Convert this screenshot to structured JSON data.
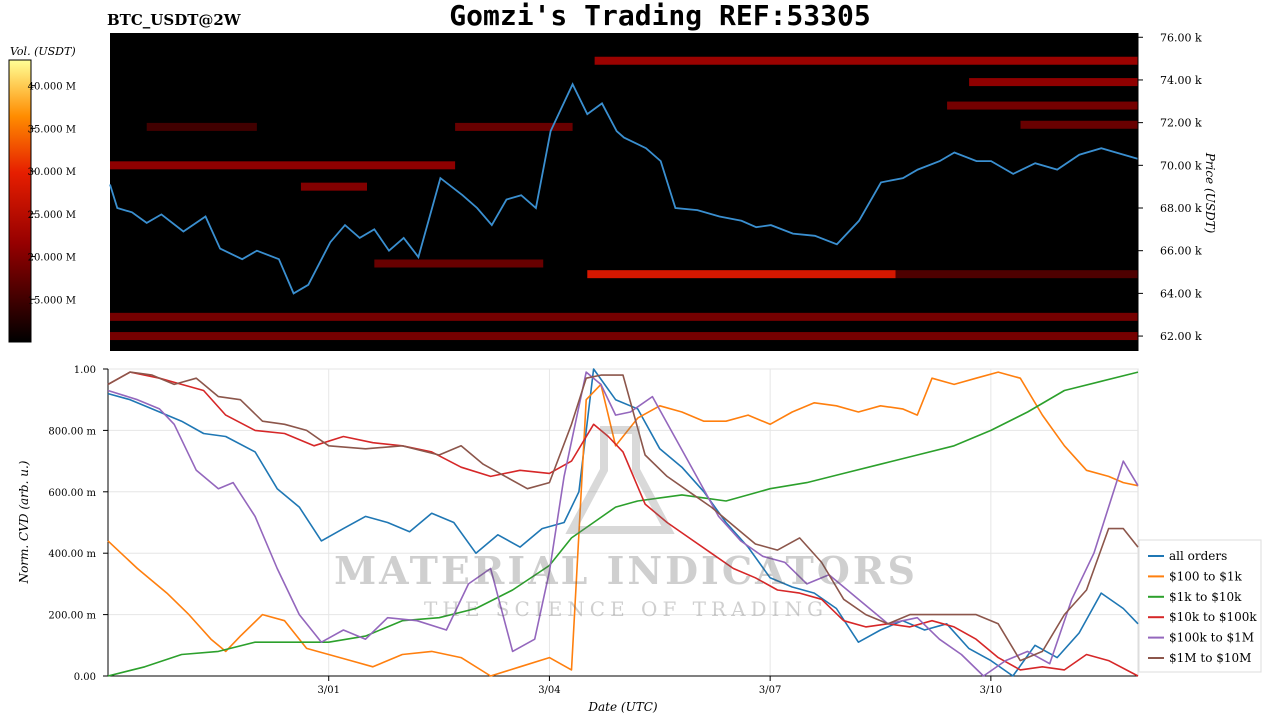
{
  "header": {
    "pair_label": "BTC_USDT@2W",
    "title": "Gomzi's Trading REF:53305"
  },
  "watermark": {
    "line1": "MATERIAL INDICATORS",
    "line2": "THE SCIENCE OF TRADING"
  },
  "colors": {
    "heatmap_bg": "#000000",
    "price_line": "#3a8fd0",
    "all_orders": "#1f77b4",
    "usd100_1k": "#ff7f0e",
    "usd1k_10k": "#2ca02c",
    "usd10k_100k": "#d62728",
    "usd100k_1m": "#9467bd",
    "usd1m_10m": "#8c564b"
  },
  "chart_data": [
    {
      "type": "heatmap",
      "colorbar": {
        "label": "Vol. (USDT)",
        "ticks": [
          "40.000 M",
          "35.000 M",
          "30.000 M",
          "25.000 M",
          "20.000 M",
          "15.000 M"
        ],
        "range": [
          10,
          43
        ]
      },
      "ylabel": "Price (USDT)",
      "ylim": [
        61.3,
        76.2
      ],
      "y_ticks": [
        {
          "v": 76,
          "label": "76.00 k"
        },
        {
          "v": 74,
          "label": "74.00 k"
        },
        {
          "v": 72,
          "label": "72.00 k"
        },
        {
          "v": 70,
          "label": "70.00 k"
        },
        {
          "v": 68,
          "label": "68.00 k"
        },
        {
          "v": 66,
          "label": "66.00 k"
        },
        {
          "v": 64,
          "label": "64.00 k"
        },
        {
          "v": 62,
          "label": "62.00 k"
        }
      ],
      "xlim": [
        0,
        14
      ],
      "price_series": {
        "x": [
          0,
          0.1,
          0.3,
          0.5,
          0.7,
          1.0,
          1.3,
          1.5,
          1.8,
          2.0,
          2.3,
          2.5,
          2.7,
          3.0,
          3.2,
          3.4,
          3.6,
          3.8,
          4.0,
          4.2,
          4.5,
          4.8,
          5.0,
          5.2,
          5.4,
          5.6,
          5.8,
          6.0,
          6.3,
          6.5,
          6.7,
          6.9,
          7.0,
          7.3,
          7.5,
          7.7,
          8.0,
          8.3,
          8.6,
          8.8,
          9.0,
          9.3,
          9.6,
          9.9,
          10.2,
          10.5,
          10.8,
          11.0,
          11.3,
          11.5,
          11.8,
          12.0,
          12.3,
          12.6,
          12.9,
          13.2,
          13.5,
          13.7,
          14.0
        ],
        "y": [
          69.1,
          68.0,
          67.8,
          67.3,
          67.7,
          66.9,
          67.6,
          66.1,
          65.6,
          66.0,
          65.6,
          64.0,
          64.4,
          66.4,
          67.2,
          66.6,
          67.0,
          66.0,
          66.6,
          65.7,
          69.4,
          68.6,
          68.0,
          67.2,
          68.4,
          68.6,
          68.0,
          71.6,
          73.8,
          72.4,
          72.9,
          71.6,
          71.3,
          70.8,
          70.2,
          68.0,
          67.9,
          67.6,
          67.4,
          67.1,
          67.2,
          66.8,
          66.7,
          66.3,
          67.4,
          69.2,
          69.4,
          69.8,
          70.2,
          70.6,
          70.2,
          70.2,
          69.6,
          70.1,
          69.8,
          70.5,
          70.8,
          70.6,
          70.3
        ]
      },
      "liquidity_bands": [
        {
          "price": 74.9,
          "x": [
            6.6,
            14
          ],
          "vol": 22
        },
        {
          "price": 73.9,
          "x": [
            11.7,
            14
          ],
          "vol": 21
        },
        {
          "price": 72.8,
          "x": [
            11.4,
            14
          ],
          "vol": 19
        },
        {
          "price": 71.9,
          "x": [
            12.4,
            14
          ],
          "vol": 18
        },
        {
          "price": 71.8,
          "x": [
            0.5,
            2.0
          ],
          "vol": 15
        },
        {
          "price": 71.8,
          "x": [
            4.7,
            6.3
          ],
          "vol": 18
        },
        {
          "price": 70.0,
          "x": [
            0,
            4.7
          ],
          "vol": 21
        },
        {
          "price": 69.0,
          "x": [
            2.6,
            3.5
          ],
          "vol": 20
        },
        {
          "price": 65.4,
          "x": [
            3.6,
            5.9
          ],
          "vol": 18
        },
        {
          "price": 64.9,
          "x": [
            6.5,
            10.7
          ],
          "vol": 28
        },
        {
          "price": 64.9,
          "x": [
            10.7,
            14
          ],
          "vol": 16
        },
        {
          "price": 62.9,
          "x": [
            0,
            14
          ],
          "vol": 19
        },
        {
          "price": 62.0,
          "x": [
            0,
            14
          ],
          "vol": 19
        }
      ]
    },
    {
      "type": "line",
      "xlabel": "Date (UTC)",
      "ylabel": "Norm. CVD (arb. u.)",
      "ylim": [
        0,
        1
      ],
      "xlim": [
        0,
        14
      ],
      "x_ticks": [
        {
          "v": 3,
          "label": "3/01"
        },
        {
          "v": 6,
          "label": "3/04"
        },
        {
          "v": 9,
          "label": "3/07"
        },
        {
          "v": 12,
          "label": "3/10"
        }
      ],
      "y_ticks": [
        {
          "v": 0,
          "label": "0.00"
        },
        {
          "v": 0.2,
          "label": "200.00 m"
        },
        {
          "v": 0.4,
          "label": "400.00 m"
        },
        {
          "v": 0.6,
          "label": "600.00 m"
        },
        {
          "v": 0.8,
          "label": "800.00 m"
        },
        {
          "v": 1,
          "label": "1.00"
        }
      ],
      "legend_position": "right",
      "series": [
        {
          "name": "all orders",
          "color": "#1f77b4",
          "x": [
            0,
            0.3,
            0.6,
            1.0,
            1.3,
            1.6,
            2.0,
            2.3,
            2.6,
            2.9,
            3.2,
            3.5,
            3.8,
            4.1,
            4.4,
            4.7,
            5.0,
            5.3,
            5.6,
            5.9,
            6.2,
            6.4,
            6.6,
            6.9,
            7.2,
            7.5,
            7.8,
            8.1,
            8.4,
            8.7,
            9.0,
            9.3,
            9.6,
            9.9,
            10.2,
            10.5,
            10.8,
            11.1,
            11.4,
            11.7,
            12.0,
            12.3,
            12.6,
            12.9,
            13.2,
            13.5,
            13.8,
            14.0
          ],
          "y": [
            0.92,
            0.9,
            0.87,
            0.83,
            0.79,
            0.78,
            0.73,
            0.61,
            0.55,
            0.44,
            0.48,
            0.52,
            0.5,
            0.47,
            0.53,
            0.5,
            0.4,
            0.46,
            0.42,
            0.48,
            0.5,
            0.6,
            1.0,
            0.9,
            0.87,
            0.74,
            0.68,
            0.6,
            0.5,
            0.42,
            0.32,
            0.29,
            0.27,
            0.22,
            0.11,
            0.15,
            0.18,
            0.15,
            0.17,
            0.09,
            0.05,
            0.0,
            0.1,
            0.06,
            0.14,
            0.27,
            0.22,
            0.17
          ]
        },
        {
          "name": "$100 to $1k",
          "color": "#ff7f0e",
          "x": [
            0,
            0.4,
            0.8,
            1.1,
            1.4,
            1.6,
            1.8,
            2.1,
            2.4,
            2.7,
            3.0,
            3.3,
            3.6,
            4.0,
            4.4,
            4.8,
            5.2,
            5.6,
            6.0,
            6.3,
            6.5,
            6.7,
            6.9,
            7.2,
            7.5,
            7.8,
            8.1,
            8.4,
            8.7,
            9.0,
            9.3,
            9.6,
            9.9,
            10.2,
            10.5,
            10.8,
            11.0,
            11.2,
            11.5,
            11.8,
            12.1,
            12.4,
            12.7,
            13.0,
            13.3,
            13.6,
            13.8,
            14.0
          ],
          "y": [
            0.44,
            0.35,
            0.27,
            0.2,
            0.12,
            0.08,
            0.13,
            0.2,
            0.18,
            0.09,
            0.07,
            0.05,
            0.03,
            0.07,
            0.08,
            0.06,
            0.0,
            0.03,
            0.06,
            0.02,
            0.9,
            0.95,
            0.75,
            0.84,
            0.88,
            0.86,
            0.83,
            0.83,
            0.85,
            0.82,
            0.86,
            0.89,
            0.88,
            0.86,
            0.88,
            0.87,
            0.85,
            0.97,
            0.95,
            0.97,
            0.99,
            0.97,
            0.85,
            0.75,
            0.67,
            0.65,
            0.63,
            0.62
          ]
        },
        {
          "name": "$1k to $10k",
          "color": "#2ca02c",
          "x": [
            0,
            0.5,
            1.0,
            1.5,
            2.0,
            2.5,
            3.0,
            3.5,
            4.0,
            4.5,
            5.0,
            5.5,
            6.0,
            6.3,
            6.6,
            6.9,
            7.2,
            7.5,
            7.8,
            8.1,
            8.4,
            8.7,
            9.0,
            9.5,
            10.0,
            10.5,
            11.0,
            11.5,
            12.0,
            12.5,
            13.0,
            13.5,
            14.0
          ],
          "y": [
            0.0,
            0.03,
            0.07,
            0.08,
            0.11,
            0.11,
            0.11,
            0.13,
            0.18,
            0.19,
            0.22,
            0.28,
            0.36,
            0.45,
            0.5,
            0.55,
            0.57,
            0.58,
            0.59,
            0.58,
            0.57,
            0.59,
            0.61,
            0.63,
            0.66,
            0.69,
            0.72,
            0.75,
            0.8,
            0.86,
            0.93,
            0.96,
            0.99
          ]
        },
        {
          "name": "$10k to $100k",
          "color": "#d62728",
          "x": [
            0,
            0.3,
            0.7,
            1.0,
            1.3,
            1.6,
            2.0,
            2.4,
            2.8,
            3.2,
            3.6,
            4.0,
            4.4,
            4.8,
            5.2,
            5.6,
            6.0,
            6.3,
            6.6,
            6.8,
            7.0,
            7.3,
            7.6,
            7.9,
            8.2,
            8.5,
            8.8,
            9.1,
            9.4,
            9.7,
            10.0,
            10.3,
            10.6,
            10.9,
            11.2,
            11.5,
            11.8,
            12.1,
            12.4,
            12.7,
            13.0,
            13.3,
            13.6,
            14.0
          ],
          "y": [
            0.95,
            0.99,
            0.97,
            0.95,
            0.93,
            0.85,
            0.8,
            0.79,
            0.75,
            0.78,
            0.76,
            0.75,
            0.73,
            0.68,
            0.65,
            0.67,
            0.66,
            0.7,
            0.82,
            0.78,
            0.73,
            0.56,
            0.5,
            0.45,
            0.4,
            0.35,
            0.32,
            0.28,
            0.27,
            0.25,
            0.18,
            0.16,
            0.17,
            0.16,
            0.18,
            0.16,
            0.12,
            0.06,
            0.02,
            0.03,
            0.02,
            0.07,
            0.05,
            0.0
          ]
        },
        {
          "name": "$100k to $1M",
          "color": "#9467bd",
          "x": [
            0,
            0.4,
            0.7,
            0.9,
            1.2,
            1.5,
            1.7,
            2.0,
            2.3,
            2.6,
            2.9,
            3.2,
            3.5,
            3.8,
            4.2,
            4.6,
            4.9,
            5.2,
            5.5,
            5.8,
            6.0,
            6.2,
            6.5,
            6.7,
            6.9,
            7.1,
            7.4,
            7.7,
            8.0,
            8.3,
            8.6,
            8.9,
            9.2,
            9.5,
            9.8,
            10.2,
            10.6,
            11.0,
            11.3,
            11.6,
            11.9,
            12.2,
            12.5,
            12.8,
            13.1,
            13.4,
            13.6,
            13.8,
            14.0
          ],
          "y": [
            0.93,
            0.9,
            0.87,
            0.82,
            0.67,
            0.61,
            0.63,
            0.52,
            0.35,
            0.2,
            0.11,
            0.15,
            0.12,
            0.19,
            0.18,
            0.15,
            0.3,
            0.35,
            0.08,
            0.12,
            0.34,
            0.65,
            0.99,
            0.95,
            0.85,
            0.86,
            0.91,
            0.78,
            0.65,
            0.52,
            0.44,
            0.39,
            0.37,
            0.3,
            0.33,
            0.25,
            0.17,
            0.19,
            0.12,
            0.07,
            0.0,
            0.05,
            0.08,
            0.04,
            0.25,
            0.4,
            0.55,
            0.7,
            0.62
          ]
        },
        {
          "name": "$1M to $10M",
          "color": "#8c564b",
          "x": [
            0,
            0.3,
            0.6,
            0.9,
            1.2,
            1.5,
            1.8,
            2.1,
            2.4,
            2.7,
            3.0,
            3.5,
            4.0,
            4.5,
            4.8,
            5.1,
            5.4,
            5.7,
            6.0,
            6.3,
            6.5,
            6.7,
            7.0,
            7.3,
            7.6,
            7.9,
            8.2,
            8.5,
            8.8,
            9.1,
            9.4,
            9.7,
            10.0,
            10.3,
            10.6,
            10.9,
            11.2,
            11.5,
            11.8,
            12.1,
            12.4,
            12.7,
            13.0,
            13.3,
            13.6,
            13.8,
            14.0
          ],
          "y": [
            0.95,
            0.99,
            0.98,
            0.95,
            0.97,
            0.91,
            0.9,
            0.83,
            0.82,
            0.8,
            0.75,
            0.74,
            0.75,
            0.72,
            0.75,
            0.69,
            0.65,
            0.61,
            0.63,
            0.82,
            0.97,
            0.98,
            0.98,
            0.72,
            0.65,
            0.6,
            0.55,
            0.49,
            0.43,
            0.41,
            0.45,
            0.37,
            0.25,
            0.2,
            0.17,
            0.2,
            0.2,
            0.2,
            0.2,
            0.17,
            0.05,
            0.08,
            0.2,
            0.28,
            0.48,
            0.48,
            0.42
          ]
        }
      ]
    }
  ]
}
